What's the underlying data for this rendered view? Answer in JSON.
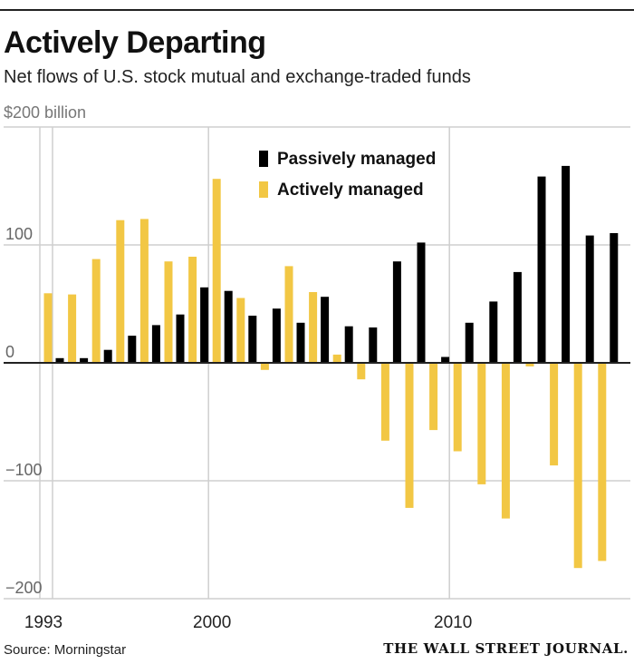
{
  "title": "Actively Departing",
  "subtitle": "Net flows of U.S. stock mutual and exchange-traded funds",
  "source": "Source: Morningstar",
  "brand": "THE WALL STREET JOURNAL.",
  "colors": {
    "passive": "#000000",
    "active": "#f2c744",
    "grid": "#cfcfcf",
    "zero": "#222222"
  },
  "chart_data": {
    "type": "bar",
    "x": [
      1993,
      1994,
      1995,
      1996,
      1997,
      1998,
      1999,
      2000,
      2001,
      2002,
      2003,
      2004,
      2005,
      2006,
      2007,
      2008,
      2009,
      2010,
      2011,
      2012,
      2013,
      2014,
      2015,
      2016
    ],
    "series": [
      {
        "name": "Passively managed",
        "color": "#000000",
        "values": [
          4,
          4,
          11,
          23,
          32,
          41,
          64,
          61,
          40,
          46,
          34,
          56,
          31,
          30,
          86,
          102,
          5,
          34,
          52,
          77,
          158,
          167,
          108,
          110
        ]
      },
      {
        "name": "Actively managed",
        "color": "#f2c744",
        "values": [
          59,
          58,
          88,
          121,
          122,
          86,
          90,
          156,
          55,
          -6,
          82,
          60,
          7,
          -14,
          -66,
          -123,
          -57,
          -75,
          -103,
          -132,
          -3,
          -87,
          -174,
          -168
        ]
      }
    ],
    "ylim": [
      -200,
      200
    ],
    "yticks": [
      -200,
      -100,
      0,
      100
    ],
    "ytick_labels": [
      "−200",
      "−100",
      "0",
      "100"
    ],
    "ytop_label": "$200 billion",
    "xticks": [
      1993,
      2000,
      2010
    ],
    "xtick_labels": [
      "1993",
      "2000",
      "2010"
    ],
    "grid": true,
    "legend": "top-center"
  }
}
